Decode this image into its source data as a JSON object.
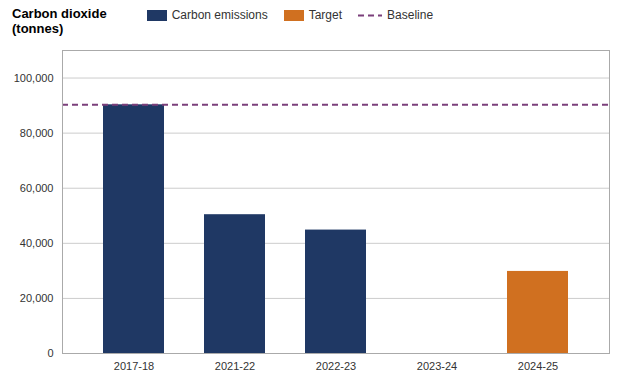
{
  "chart_data": {
    "type": "bar",
    "ylabel": "Carbon dioxide\n(tonnes)",
    "categories": [
      "2017-18",
      "2021-22",
      "2022-23",
      "2023-24",
      "2024-25"
    ],
    "series": [
      {
        "name": "Carbon emissions",
        "color": "#1f3864",
        "values": [
          90286,
          50388,
          44809,
          null,
          null
        ]
      },
      {
        "name": "Target",
        "color": "#d07020",
        "values": [
          null,
          null,
          null,
          null,
          29794
        ]
      }
    ],
    "baseline": {
      "name": "Baseline",
      "value": 90286,
      "color": "#7b3f7b",
      "line_style": "dashed"
    },
    "ylim": [
      0,
      110000
    ],
    "yticks": [
      0,
      {
        "value": 20000,
        "label": "20,000"
      },
      {
        "value": 40000,
        "label": "40,000"
      },
      {
        "value": 60000,
        "label": "60,000"
      },
      {
        "value": 80000,
        "label": "80,000"
      },
      {
        "value": 100000,
        "label": "100,000"
      }
    ],
    "grid": true,
    "legend": "top"
  }
}
